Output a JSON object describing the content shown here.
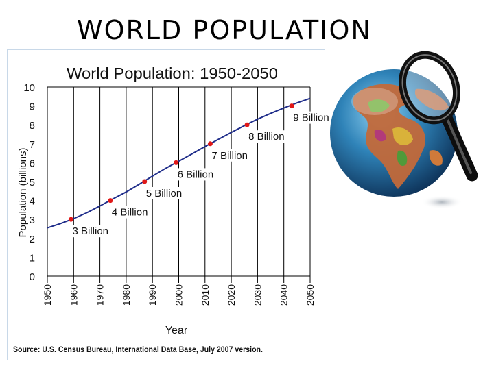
{
  "slide_title": "WORLD POPULATION",
  "source_note": "Source: U.S. Census Bureau, International Data Base, July 2007 version.",
  "colors": {
    "line": "#1f2d8a",
    "milestone_marker": "#e01818",
    "grid": "#000000"
  },
  "illustration": {
    "icons": [
      "globe-icon",
      "magnifying-glass-icon"
    ]
  },
  "chart_data": {
    "type": "line",
    "title": "World Population: 1950-2050",
    "xlabel": "Year",
    "ylabel": "Population (billions)",
    "xlim": [
      1950,
      2050
    ],
    "ylim": [
      0,
      10
    ],
    "x_ticks": [
      "1950",
      "1960",
      "1970",
      "1980",
      "1990",
      "2000",
      "2010",
      "2020",
      "2030",
      "2040",
      "2050"
    ],
    "y_ticks": [
      "0",
      "1",
      "2",
      "3",
      "4",
      "5",
      "6",
      "7",
      "8",
      "9",
      "10"
    ],
    "grid": "vertical",
    "series": [
      {
        "x": [
          1950,
          1955,
          1960,
          1965,
          1970,
          1975,
          1980,
          1985,
          1990,
          1995,
          2000,
          2005,
          2010,
          2015,
          2020,
          2025,
          2030,
          2035,
          2040,
          2045,
          2050
        ],
        "y": [
          2.55,
          2.78,
          3.04,
          3.35,
          3.71,
          4.09,
          4.45,
          4.86,
          5.29,
          5.7,
          6.08,
          6.46,
          6.85,
          7.23,
          7.6,
          7.96,
          8.3,
          8.61,
          8.89,
          9.16,
          9.4
        ]
      }
    ],
    "milestones": [
      {
        "x": 1959,
        "y": 3,
        "label": "3 Billion"
      },
      {
        "x": 1974,
        "y": 4,
        "label": "4 Billion"
      },
      {
        "x": 1987,
        "y": 5,
        "label": "5 Billion"
      },
      {
        "x": 1999,
        "y": 6,
        "label": "6 Billion"
      },
      {
        "x": 2012,
        "y": 7,
        "label": "7 Billion"
      },
      {
        "x": 2026,
        "y": 8,
        "label": "8 Billion"
      },
      {
        "x": 2043,
        "y": 9,
        "label": "9 Billion"
      }
    ]
  }
}
